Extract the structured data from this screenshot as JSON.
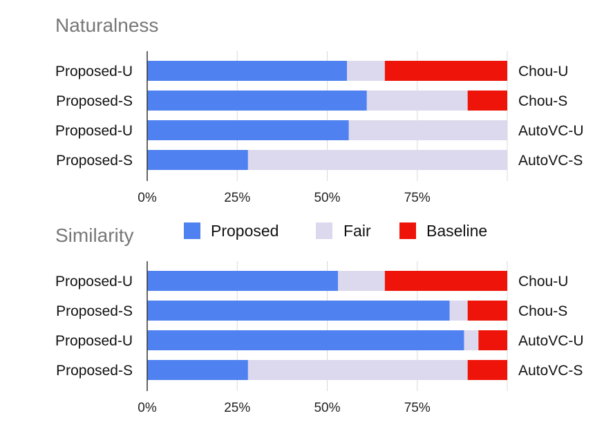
{
  "legend": [
    {
      "label": "Proposed",
      "color": "#4f81f0"
    },
    {
      "label": "Fair",
      "color": "#dcd8ee"
    },
    {
      "label": "Baseline",
      "color": "#ee140a"
    }
  ],
  "chart_data": [
    {
      "type": "bar",
      "orientation": "horizontal",
      "stacked": "100%",
      "title": "Naturalness",
      "left_labels": [
        "Proposed-U",
        "Proposed-S",
        "Proposed-U",
        "Proposed-S"
      ],
      "right_labels": [
        "Chou-U",
        "Chou-S",
        "AutoVC-U",
        "AutoVC-S"
      ],
      "xticks": [
        "0%",
        "25%",
        "50%",
        "75%"
      ],
      "xlim": [
        0,
        100
      ],
      "grid": true,
      "series": [
        {
          "name": "Proposed",
          "values": [
            55.5,
            61,
            56,
            28
          ]
        },
        {
          "name": "Fair",
          "values": [
            10.5,
            28,
            44,
            72
          ]
        },
        {
          "name": "Baseline",
          "values": [
            34,
            11,
            0,
            0
          ]
        }
      ]
    },
    {
      "type": "bar",
      "orientation": "horizontal",
      "stacked": "100%",
      "title": "Similarity",
      "left_labels": [
        "Proposed-U",
        "Proposed-S",
        "Proposed-U",
        "Proposed-S"
      ],
      "right_labels": [
        "Chou-U",
        "Chou-S",
        "AutoVC-U",
        "AutoVC-S"
      ],
      "xticks": [
        "0%",
        "25%",
        "50%",
        "75%"
      ],
      "xlim": [
        0,
        100
      ],
      "grid": true,
      "series": [
        {
          "name": "Proposed",
          "values": [
            53,
            84,
            88,
            28
          ]
        },
        {
          "name": "Fair",
          "values": [
            13,
            5,
            4,
            61
          ]
        },
        {
          "name": "Baseline",
          "values": [
            34,
            11,
            8,
            11
          ]
        }
      ]
    }
  ]
}
